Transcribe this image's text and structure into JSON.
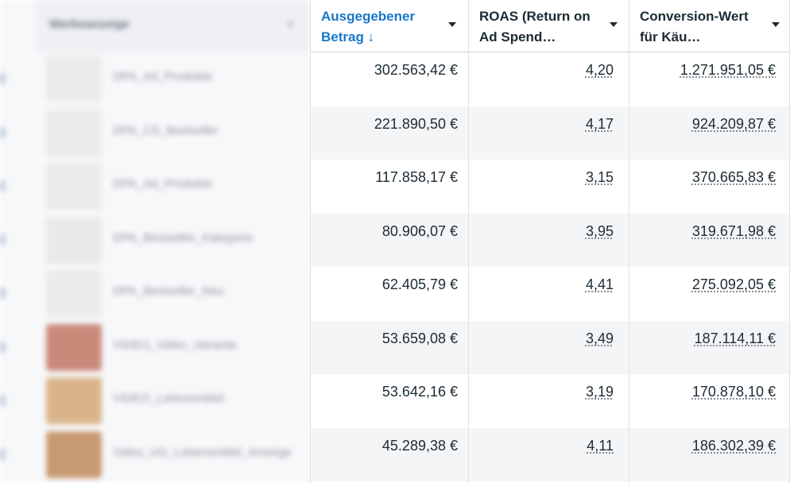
{
  "left_column": {
    "header_label": "Werbeanzeige",
    "rows": [
      {
        "name": "DPA_Ad_Produkte"
      },
      {
        "name": "DPA_CS_Bestseller"
      },
      {
        "name": "DPA_Ad_Produkte"
      },
      {
        "name": "DPA_Bestseller_Kategorie"
      },
      {
        "name": "DPA_Bestseller_Neu"
      },
      {
        "name": "VIDEO_Video_Variante"
      },
      {
        "name": "VIDEO_Lebensmittel"
      },
      {
        "name": "Video_UG_Lebensmittel_Anzeige"
      }
    ]
  },
  "columns": [
    {
      "key": "spend",
      "label": "Ausgegebener Betrag ↓",
      "sorted": true
    },
    {
      "key": "roas",
      "label": "ROAS (Return on Ad Spend…",
      "sorted": false
    },
    {
      "key": "conv",
      "label": "Conversion-Wert für Käu…",
      "sorted": false
    }
  ],
  "rows": [
    {
      "spend": "302.563,42 €",
      "roas": "4,20",
      "conv": "1.271.951,05 €"
    },
    {
      "spend": "221.890,50 €",
      "roas": "4,17",
      "conv": "924.209,87 €"
    },
    {
      "spend": "117.858,17 €",
      "roas": "3,15",
      "conv": "370.665,83 €"
    },
    {
      "spend": "80.906,07 €",
      "roas": "3,95",
      "conv": "319.671,98 €"
    },
    {
      "spend": "62.405,79 €",
      "roas": "4,41",
      "conv": "275.092,05 €"
    },
    {
      "spend": "53.659,08 €",
      "roas": "3,49",
      "conv": "187.114,11 €"
    },
    {
      "spend": "53.642,16 €",
      "roas": "3,19",
      "conv": "170.878,10 €"
    },
    {
      "spend": "45.289,38 €",
      "roas": "4,11",
      "conv": "186.302,39 €"
    }
  ],
  "colors": {
    "sorted_header": "#1877c9",
    "text": "#1c2b33",
    "row_alt": "#f4f5f7"
  }
}
